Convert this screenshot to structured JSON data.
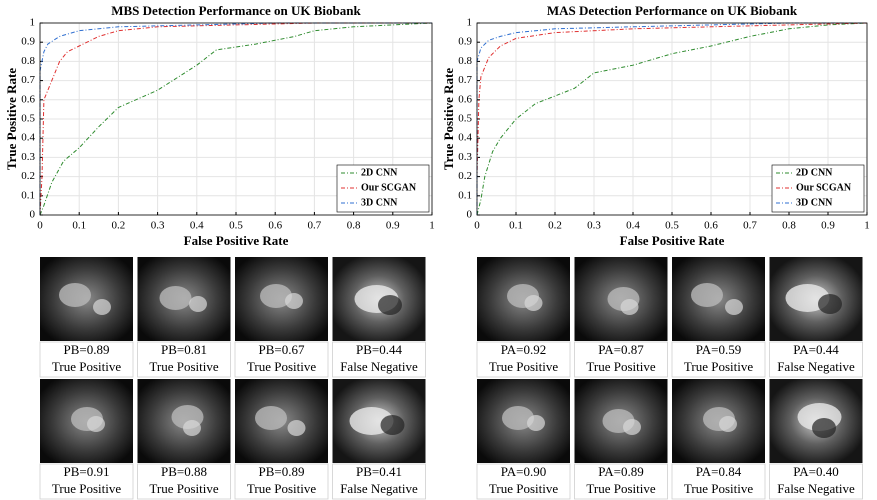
{
  "chart_data": [
    {
      "type": "line",
      "title": "MBS Detection Performance on UK Biobank",
      "x_label": "False Positive Rate",
      "y_label": "True Positive Rate",
      "xlim": [
        0,
        1
      ],
      "ylim": [
        0,
        1
      ],
      "xticks": [
        0,
        0.1,
        0.2,
        0.3,
        0.4,
        0.5,
        0.6,
        0.7,
        0.8,
        0.9,
        1
      ],
      "yticks": [
        0,
        0.1,
        0.2,
        0.3,
        0.4,
        0.5,
        0.6,
        0.7,
        0.8,
        0.9,
        1
      ],
      "grid": true,
      "legend": "lower-right",
      "line_style": "dash-dot",
      "series": [
        {
          "name": "2D CNN",
          "color": "#2e8b2e",
          "x": [
            0,
            0.01,
            0.03,
            0.06,
            0.1,
            0.15,
            0.2,
            0.3,
            0.4,
            0.45,
            0.55,
            0.65,
            0.7,
            0.8,
            0.9,
            1
          ],
          "values": [
            0,
            0.05,
            0.17,
            0.28,
            0.35,
            0.46,
            0.56,
            0.65,
            0.78,
            0.86,
            0.89,
            0.93,
            0.96,
            0.98,
            0.99,
            1
          ]
        },
        {
          "name": "Our SCGAN",
          "color": "#e03030",
          "x": [
            0,
            0.005,
            0.01,
            0.03,
            0.05,
            0.07,
            0.1,
            0.15,
            0.2,
            0.3,
            0.5,
            0.7,
            1
          ],
          "values": [
            0,
            0.2,
            0.6,
            0.7,
            0.8,
            0.85,
            0.88,
            0.93,
            0.96,
            0.98,
            0.99,
            1,
            1
          ]
        },
        {
          "name": "3D CNN",
          "color": "#2f6fd0",
          "x": [
            0,
            0,
            0.01,
            0.02,
            0.05,
            0.1,
            0.2,
            0.4,
            0.6,
            1
          ],
          "values": [
            0,
            0.75,
            0.85,
            0.89,
            0.93,
            0.96,
            0.98,
            0.99,
            1,
            1
          ]
        }
      ]
    },
    {
      "type": "line",
      "title": "MAS Detection Performance on UK Biobank",
      "x_label": "False Positive Rate",
      "y_label": "True Positive Rate",
      "xlim": [
        0,
        1
      ],
      "ylim": [
        0,
        1
      ],
      "xticks": [
        0,
        0.1,
        0.2,
        0.3,
        0.4,
        0.5,
        0.6,
        0.7,
        0.8,
        0.9,
        1
      ],
      "yticks": [
        0,
        0.1,
        0.2,
        0.3,
        0.4,
        0.5,
        0.6,
        0.7,
        0.8,
        0.9,
        1
      ],
      "grid": true,
      "legend": "lower-right",
      "line_style": "dash-dot",
      "series": [
        {
          "name": "2D CNN",
          "color": "#2e8b2e",
          "x": [
            0,
            0.01,
            0.02,
            0.04,
            0.06,
            0.1,
            0.15,
            0.2,
            0.25,
            0.3,
            0.4,
            0.5,
            0.6,
            0.7,
            0.8,
            0.9,
            1
          ],
          "values": [
            0,
            0.08,
            0.2,
            0.33,
            0.4,
            0.5,
            0.58,
            0.62,
            0.66,
            0.74,
            0.78,
            0.84,
            0.88,
            0.93,
            0.97,
            0.99,
            1
          ]
        },
        {
          "name": "Our SCGAN",
          "color": "#e03030",
          "x": [
            0,
            0,
            0.005,
            0.01,
            0.03,
            0.06,
            0.1,
            0.2,
            0.4,
            0.6,
            0.8,
            1
          ],
          "values": [
            0,
            0.2,
            0.6,
            0.72,
            0.82,
            0.88,
            0.92,
            0.95,
            0.97,
            0.98,
            0.99,
            1
          ]
        },
        {
          "name": "3D CNN",
          "color": "#2f6fd0",
          "x": [
            0,
            0,
            0.01,
            0.03,
            0.06,
            0.1,
            0.2,
            0.4,
            0.6,
            0.8,
            1
          ],
          "values": [
            0,
            0.8,
            0.87,
            0.91,
            0.93,
            0.95,
            0.97,
            0.98,
            0.99,
            1,
            1
          ]
        }
      ]
    }
  ],
  "image_grids": [
    [
      {
        "score": "PB=0.89",
        "result": "True Positive"
      },
      {
        "score": "PB=0.81",
        "result": "True Positive"
      },
      {
        "score": "PB=0.67",
        "result": "True Positive"
      },
      {
        "score": "PB=0.44",
        "result": "False Negative"
      },
      {
        "score": "PB=0.91",
        "result": "True Positive"
      },
      {
        "score": "PB=0.88",
        "result": "True Positive"
      },
      {
        "score": "PB=0.89",
        "result": "True Positive"
      },
      {
        "score": "PB=0.41",
        "result": "False Negative"
      }
    ],
    [
      {
        "score": "PA=0.92",
        "result": "True Positive"
      },
      {
        "score": "PA=0.87",
        "result": "True Positive"
      },
      {
        "score": "PA=0.59",
        "result": "True Positive"
      },
      {
        "score": "PA=0.44",
        "result": "False Negative"
      },
      {
        "score": "PA=0.90",
        "result": "True Positive"
      },
      {
        "score": "PA=0.89",
        "result": "True Positive"
      },
      {
        "score": "PA=0.84",
        "result": "True Positive"
      },
      {
        "score": "PA=0.40",
        "result": "False Negative"
      }
    ]
  ]
}
